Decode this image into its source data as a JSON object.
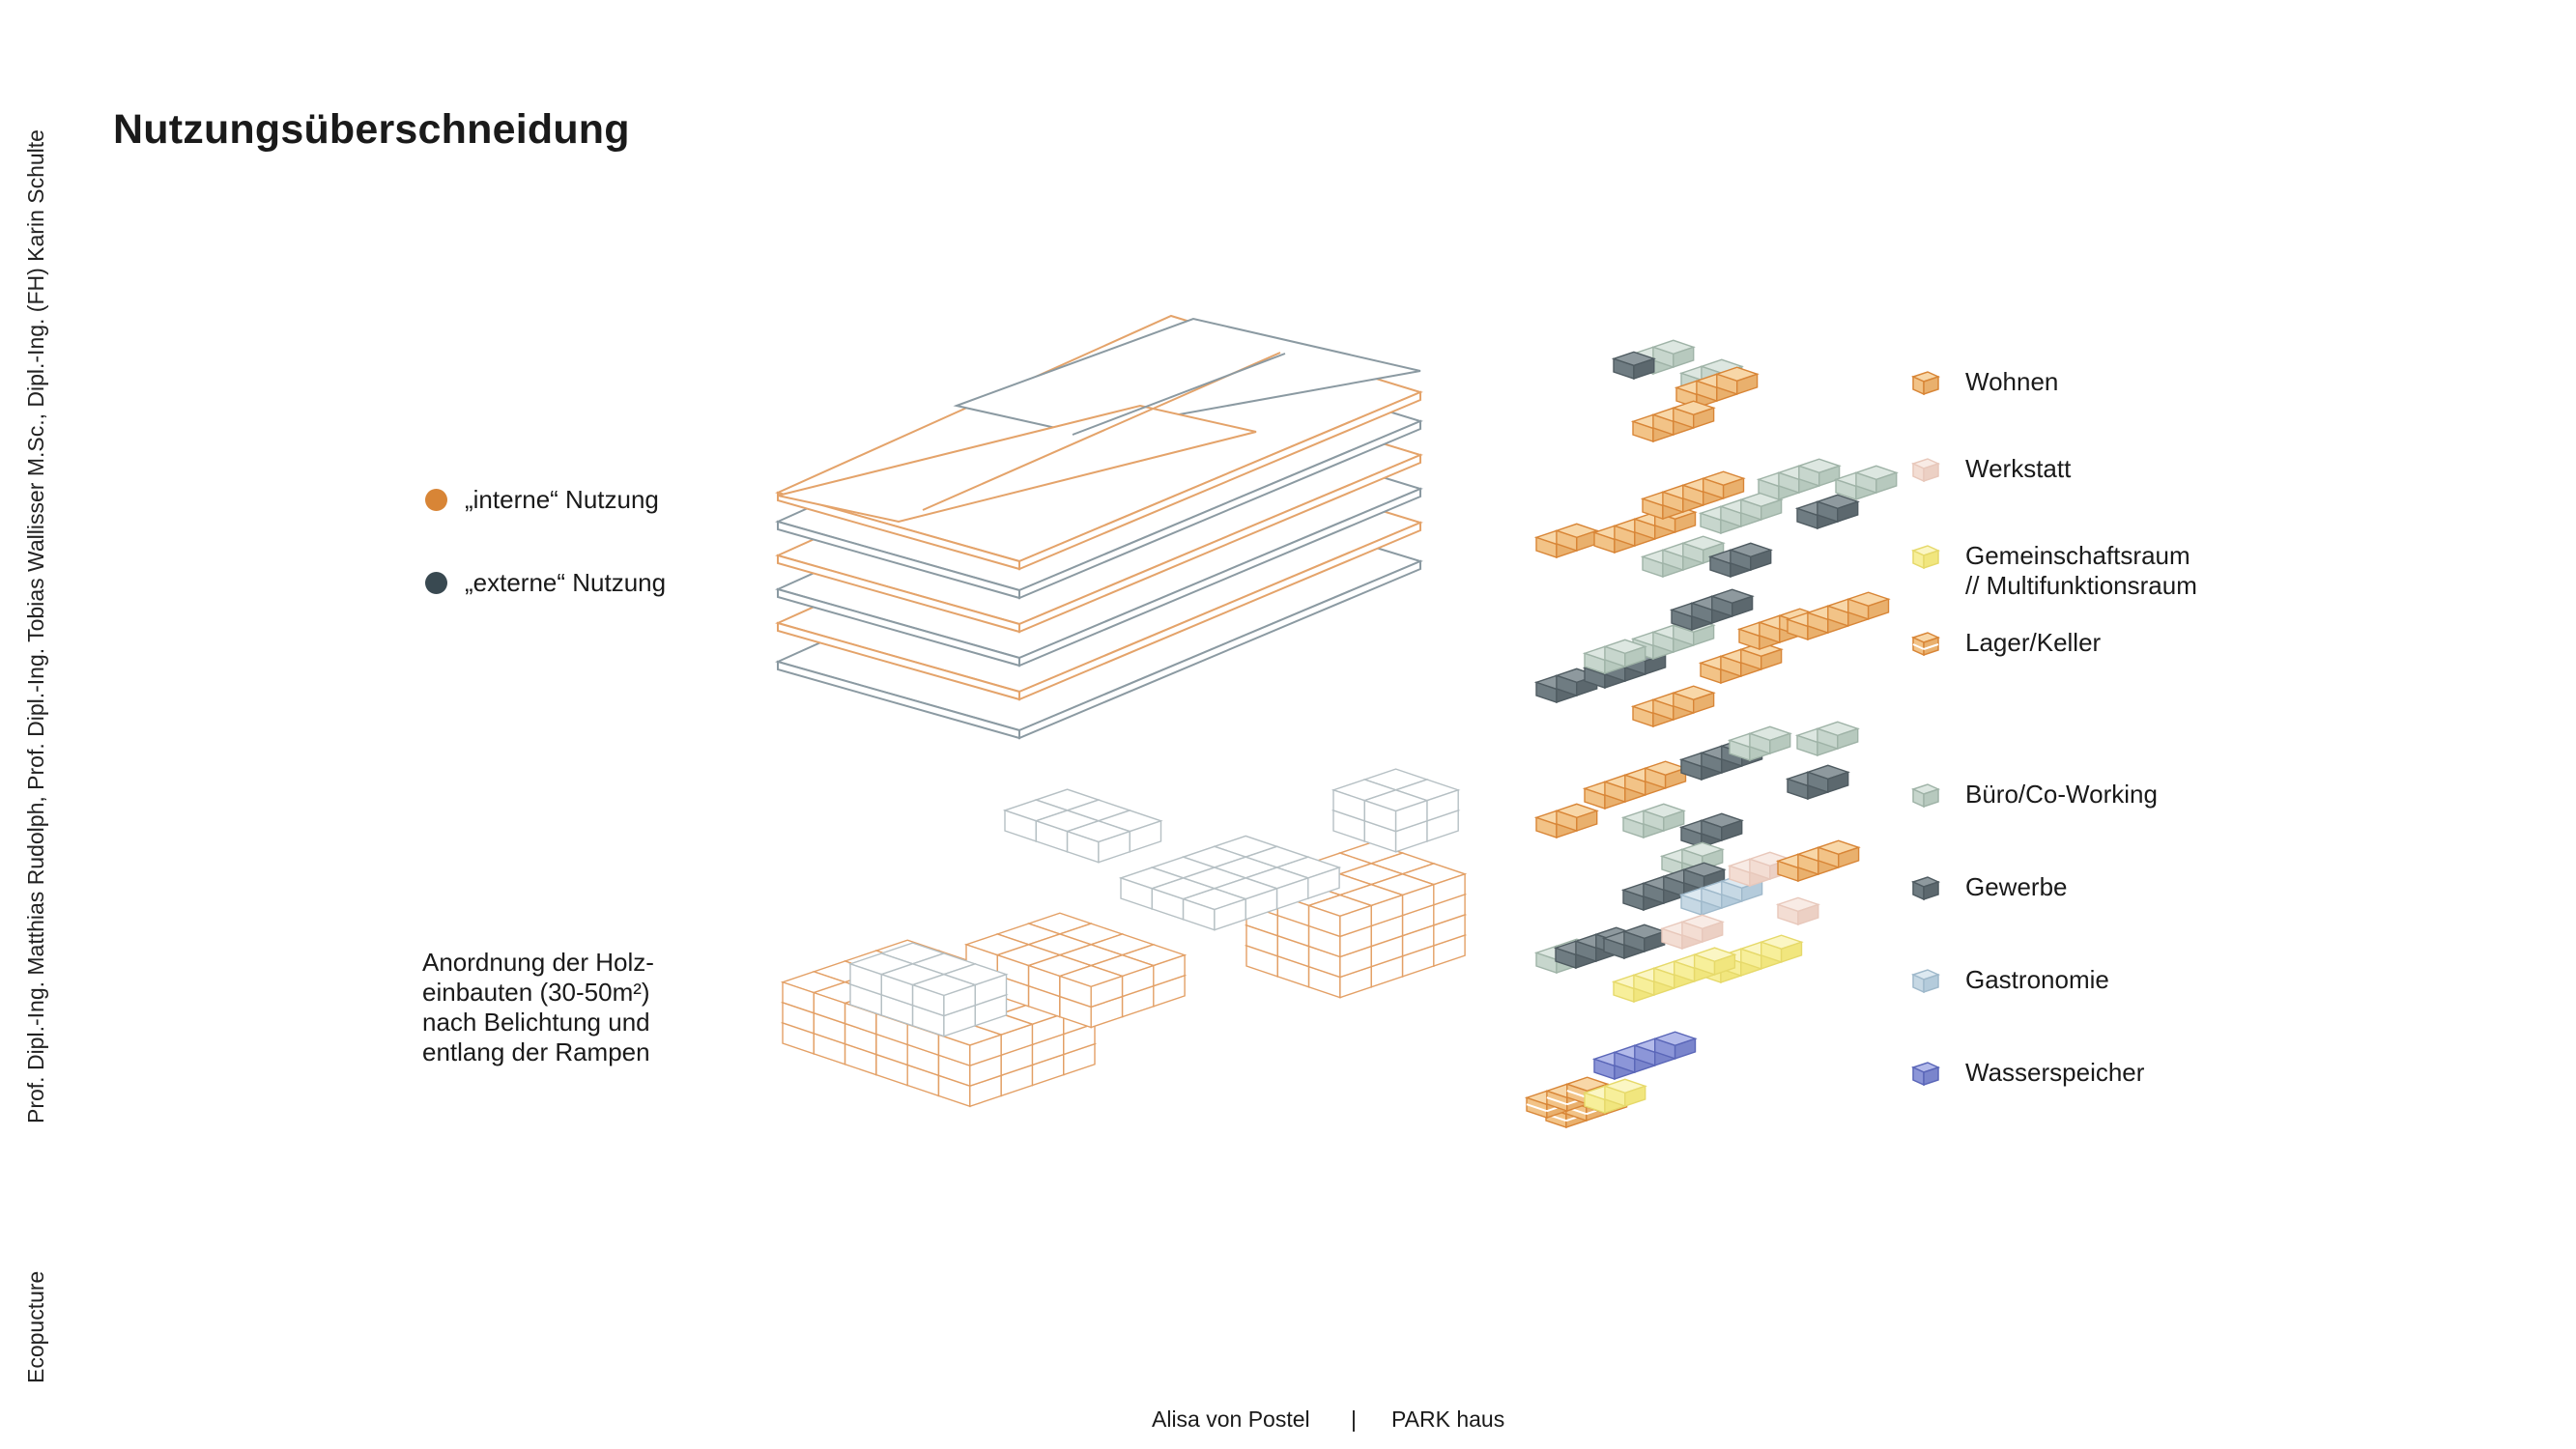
{
  "side_credits": {
    "authors": "Prof. Dipl.-Ing. Matthias Rudolph, Prof. Dipl.-Ing. Tobias Wallisser M.Sc., Dipl.-Ing. (FH) Karin Schulte",
    "course": "Ecopucture"
  },
  "title": "Nutzungsüberschneidung",
  "usage_types": [
    {
      "label": "„interne“ Nutzung",
      "color": "#d88536"
    },
    {
      "label": "„externe“ Nutzung",
      "color": "#394951"
    }
  ],
  "note": [
    "Anordnung der Holz-",
    "einbauten (30-50m²)",
    "nach Belichtung und",
    "entlang der Rampen"
  ],
  "legend": [
    {
      "label": [
        "Wohnen"
      ],
      "icon": "cube-orange",
      "color": "#f2c387"
    },
    {
      "label": [
        "Werkstatt"
      ],
      "icon": "cube-pink",
      "color": "#f3ddd3"
    },
    {
      "label": [
        "Gemeinschaftsraum",
        "// Multifunktionsraum"
      ],
      "icon": "cube-yellow",
      "color": "#f7ef9a"
    },
    {
      "label": [
        "Lager/Keller"
      ],
      "icon": "cube-striped-orange",
      "color": "#f2c387"
    },
    {
      "label": [
        "Büro/Co-Working"
      ],
      "icon": "cube-sage",
      "color": "#c7d6cd"
    },
    {
      "label": [
        "Gewerbe"
      ],
      "icon": "cube-dark",
      "color": "#6f7c82"
    },
    {
      "label": [
        "Gastronomie"
      ],
      "icon": "cube-lightblue",
      "color": "#c6d8e4"
    },
    {
      "label": [
        "Wasserspeicher"
      ],
      "icon": "cube-purple",
      "color": "#8c96d8"
    }
  ],
  "footer": {
    "author": "Alisa von Postel",
    "separator": "|",
    "project": "PARK haus"
  }
}
